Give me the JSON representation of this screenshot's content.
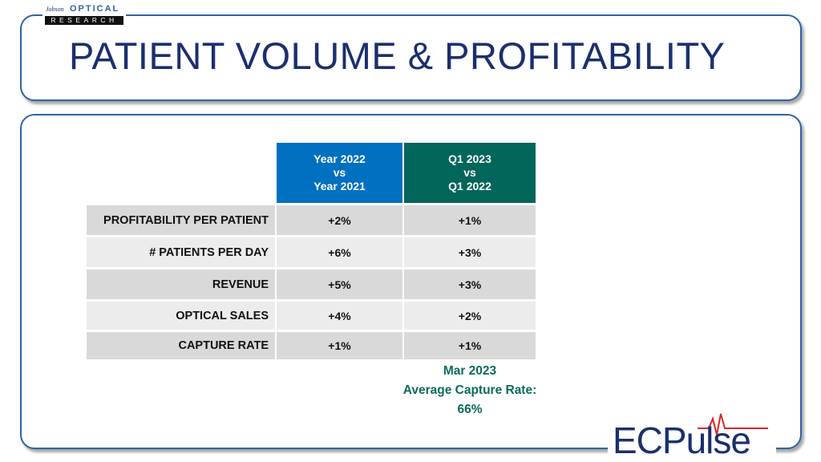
{
  "logo": {
    "brand": "Jobson",
    "line1": "OPTICAL",
    "line2": "RESEARCH"
  },
  "title": "PATIENT VOLUME & PROFITABILITY",
  "table": {
    "headers": [
      [
        "Year 2022",
        "vs",
        "Year 2021"
      ],
      [
        "Q1 2023",
        "vs",
        "Q1 2022"
      ]
    ],
    "rows": [
      [
        "PROFITABILITY PER PATIENT",
        "+2%",
        "+1%"
      ],
      [
        "# PATIENTS PER DAY",
        "+6%",
        "+3%"
      ],
      [
        "REVENUE",
        "+5%",
        "+3%"
      ],
      [
        "OPTICAL SALES",
        "+4%",
        "+2%"
      ],
      [
        "CAPTURE RATE",
        "+1%",
        "+1%"
      ]
    ]
  },
  "note": [
    "Mar 2023",
    "Average Capture Rate:",
    "66%"
  ],
  "footer_logo": "ECPulse"
}
